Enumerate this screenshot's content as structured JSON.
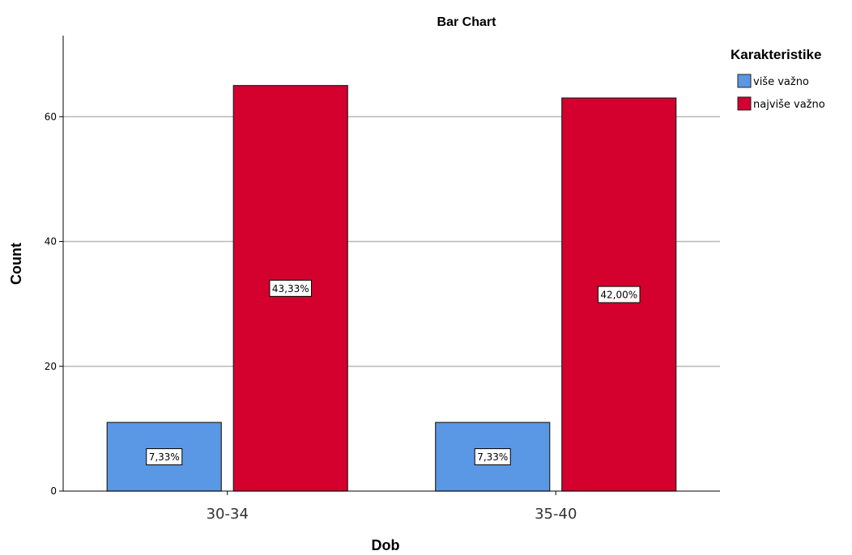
{
  "chart_data": {
    "type": "bar",
    "title": "Bar Chart",
    "xlabel": "Dob",
    "ylabel": "Count",
    "categories": [
      "30-34",
      "35-40"
    ],
    "ylim": [
      0,
      73
    ],
    "yticks": [
      0,
      20,
      40,
      60
    ],
    "grid": true,
    "legend": {
      "title": "Karakteristike",
      "placement": "top-right"
    },
    "series": [
      {
        "name": "više važno",
        "color": "#5a98e6",
        "values": [
          11,
          11
        ],
        "labels": [
          "7,33%",
          "7,33%"
        ]
      },
      {
        "name": "najviše važno",
        "color": "#d4002d",
        "values": [
          65,
          63
        ],
        "labels": [
          "43,33%",
          "42,00%"
        ]
      }
    ]
  }
}
